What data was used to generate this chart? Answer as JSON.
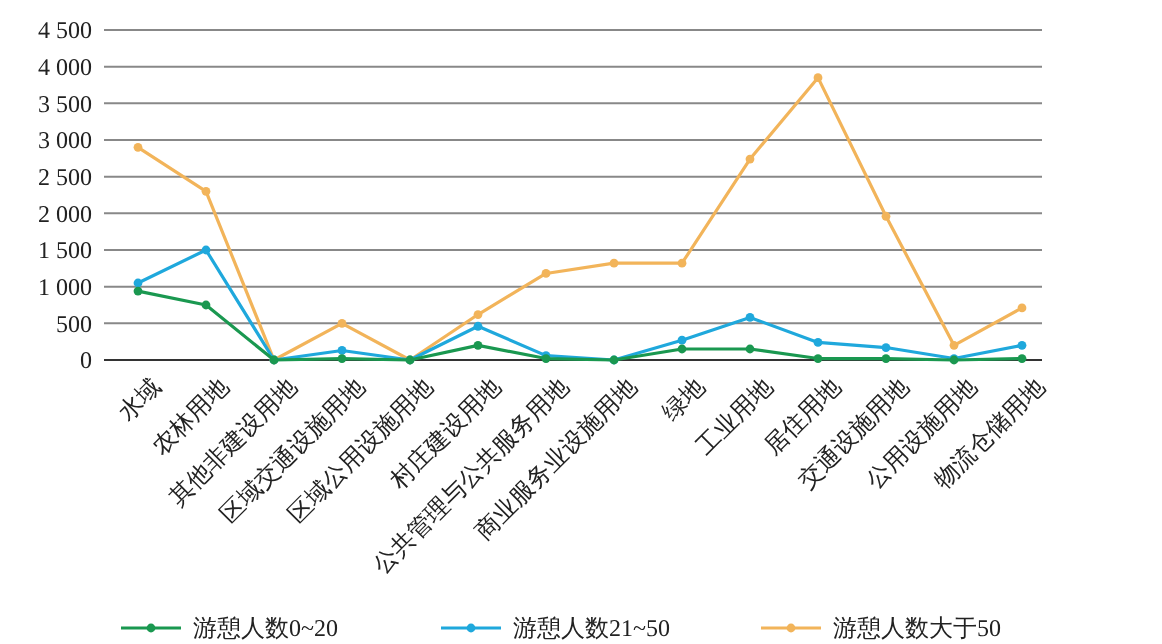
{
  "chart_data": {
    "type": "line",
    "categories": [
      "水域",
      "农林用地",
      "其他非建设用地",
      "区域交通设施用地",
      "区域公用设施用地",
      "村庄建设用地",
      "公共管理与公共服务用地",
      "商业服务业设施用地",
      "绿地",
      "工业用地",
      "居住用地",
      "交通设施用地",
      "公用设施用地",
      "物流仓储用地"
    ],
    "series": [
      {
        "name": "游憩人数0~20",
        "color": "#1a9850",
        "values": [
          940,
          750,
          0,
          20,
          0,
          200,
          20,
          0,
          150,
          150,
          20,
          20,
          0,
          20
        ]
      },
      {
        "name": "游憩人数21~50",
        "color": "#1fa8dc",
        "values": [
          1050,
          1500,
          0,
          130,
          0,
          460,
          60,
          0,
          270,
          580,
          240,
          170,
          20,
          200
        ]
      },
      {
        "name": "游憩人数大于50",
        "color": "#f2b45a",
        "values": [
          2900,
          2300,
          0,
          500,
          0,
          620,
          1180,
          1320,
          1320,
          2740,
          3850,
          1960,
          200,
          710
        ]
      }
    ],
    "ylim": [
      0,
      4500
    ],
    "yticks": [
      0,
      {
        "value": 500,
        "label": "500"
      },
      {
        "value": 1000,
        "label": "1 000"
      },
      {
        "value": 1500,
        "label": "1 500"
      },
      {
        "value": 2000,
        "label": "2 000"
      },
      {
        "value": 2500,
        "label": "2 500"
      },
      {
        "value": 3000,
        "label": "3 000"
      },
      {
        "value": 3500,
        "label": "3 500"
      },
      {
        "value": 4000,
        "label": "4 000"
      },
      {
        "value": 4500,
        "label": "4 500"
      }
    ],
    "grid": "y",
    "legend": "bottom",
    "marker": "circle",
    "line_style": "solid"
  }
}
